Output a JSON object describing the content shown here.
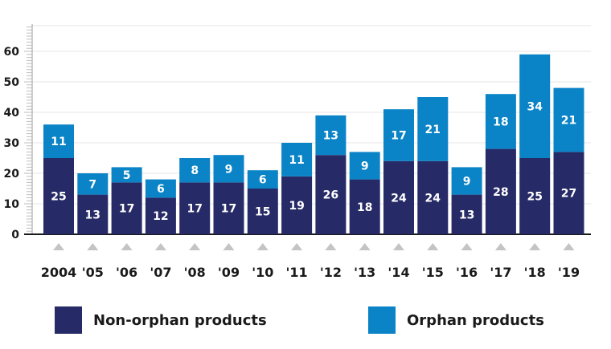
{
  "chart_data": {
    "type": "bar",
    "stacked": true,
    "categories": [
      "2004",
      "'05",
      "'06",
      "'07",
      "'08",
      "'09",
      "'10",
      "'11",
      "'12",
      "'13",
      "'14",
      "'15",
      "'16",
      "'17",
      "'18",
      "'19"
    ],
    "series": [
      {
        "name": "Non-orphan products",
        "color": "#262a66",
        "values": [
          25,
          13,
          17,
          12,
          17,
          17,
          15,
          19,
          26,
          18,
          24,
          24,
          13,
          28,
          25,
          27
        ]
      },
      {
        "name": "Orphan products",
        "color": "#0a84c6",
        "values": [
          11,
          7,
          5,
          6,
          8,
          9,
          6,
          11,
          13,
          9,
          17,
          21,
          9,
          18,
          34,
          21
        ]
      }
    ],
    "yticks": [
      "0",
      "10",
      "20",
      "30",
      "40",
      "50",
      "60"
    ],
    "ylim": [
      0,
      60
    ],
    "grid": true,
    "legend_position": "bottom",
    "title": "",
    "xlabel": "",
    "ylabel": ""
  }
}
